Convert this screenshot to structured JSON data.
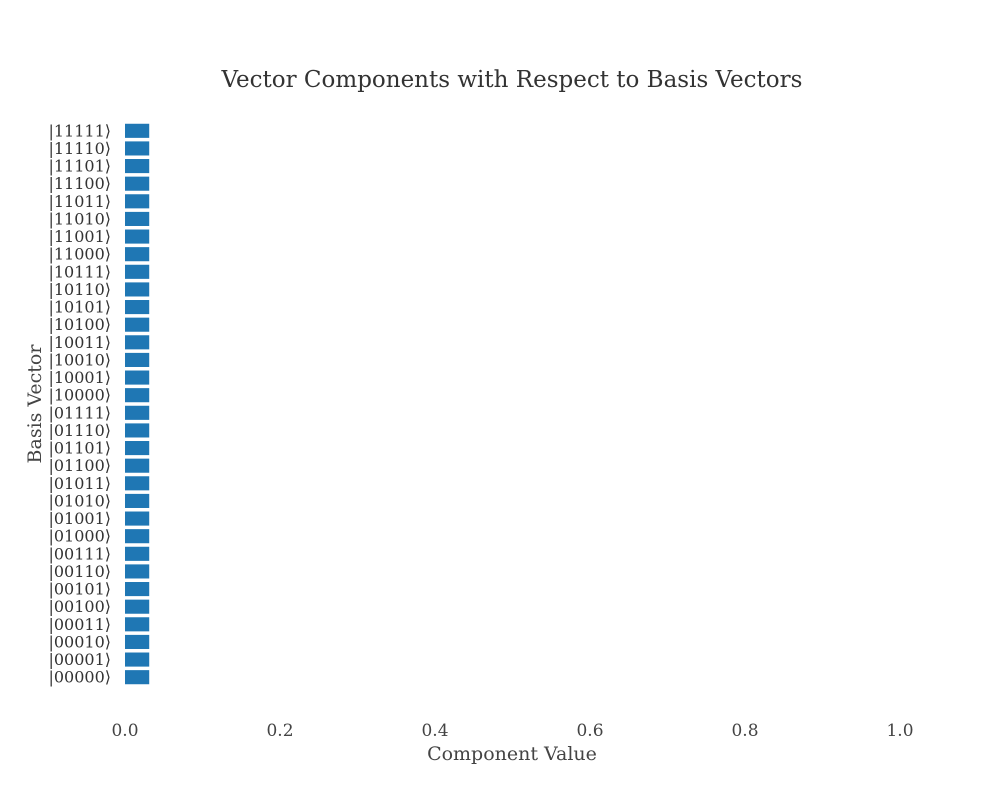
{
  "chart_data": {
    "type": "bar",
    "orientation": "horizontal",
    "title": "Vector Components with Respect to Basis Vectors",
    "xlabel": "Component Value",
    "ylabel": "Basis Vector",
    "xlim": [
      0.0,
      1.0
    ],
    "xticks": [
      "0.0",
      "0.2",
      "0.4",
      "0.6",
      "0.8",
      "1.0"
    ],
    "grid": false,
    "legend": "none",
    "bar_color": "#1f77b4",
    "categories": [
      "|00000⟩",
      "|00001⟩",
      "|00010⟩",
      "|00011⟩",
      "|00100⟩",
      "|00101⟩",
      "|00110⟩",
      "|00111⟩",
      "|01000⟩",
      "|01001⟩",
      "|01010⟩",
      "|01011⟩",
      "|01100⟩",
      "|01101⟩",
      "|01110⟩",
      "|01111⟩",
      "|10000⟩",
      "|10001⟩",
      "|10010⟩",
      "|10011⟩",
      "|10100⟩",
      "|10101⟩",
      "|10110⟩",
      "|10111⟩",
      "|11000⟩",
      "|11001⟩",
      "|11010⟩",
      "|11011⟩",
      "|11100⟩",
      "|11101⟩",
      "|11110⟩",
      "|11111⟩"
    ],
    "values": [
      0.03125,
      0.03125,
      0.03125,
      0.03125,
      0.03125,
      0.03125,
      0.03125,
      0.03125,
      0.03125,
      0.03125,
      0.03125,
      0.03125,
      0.03125,
      0.03125,
      0.03125,
      0.03125,
      0.03125,
      0.03125,
      0.03125,
      0.03125,
      0.03125,
      0.03125,
      0.03125,
      0.03125,
      0.03125,
      0.03125,
      0.03125,
      0.03125,
      0.03125,
      0.03125,
      0.03125,
      0.03125
    ]
  }
}
